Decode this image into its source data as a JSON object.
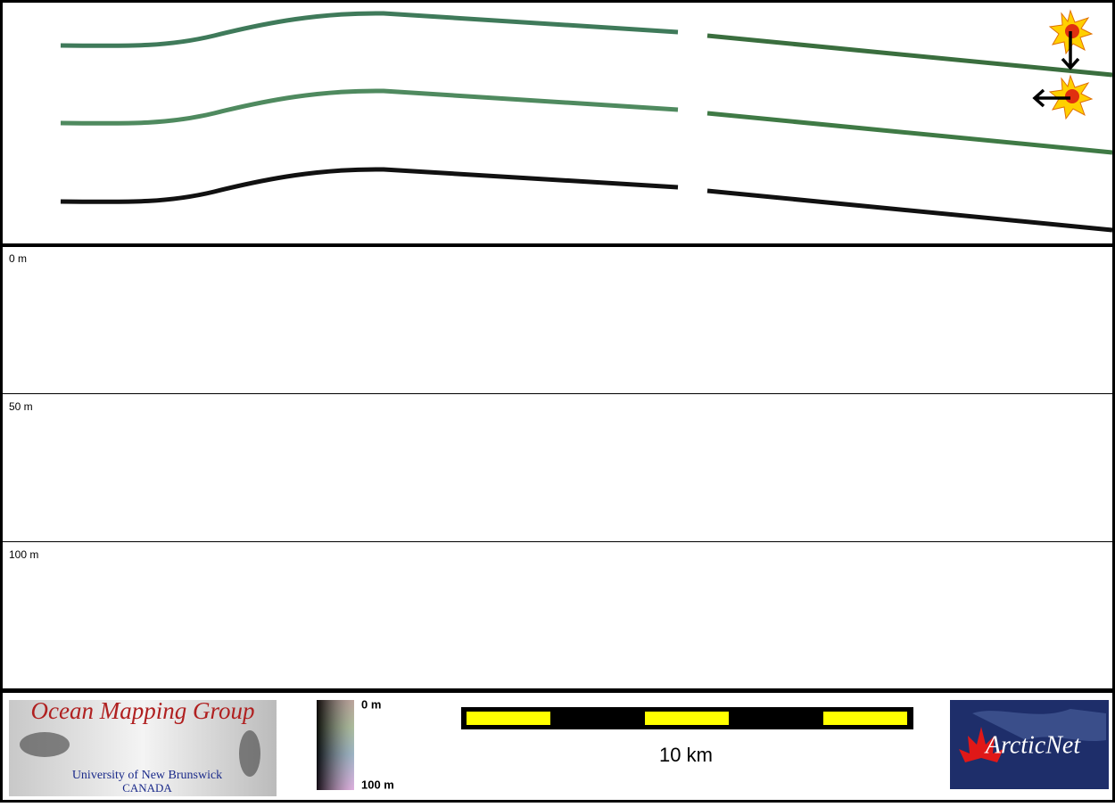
{
  "depth_panel": {
    "labels": [
      "0 m",
      "50 m",
      "100 m"
    ]
  },
  "footer": {
    "logo_left": {
      "title": "Ocean Mapping Group",
      "line1": "University of New Brunswick",
      "line2": "CANADA"
    },
    "colorbar": {
      "top": "0 m",
      "bottom": "100 m"
    },
    "scale_bar": {
      "label": "10 km"
    },
    "logo_right": {
      "text": "ArcticNet"
    }
  }
}
